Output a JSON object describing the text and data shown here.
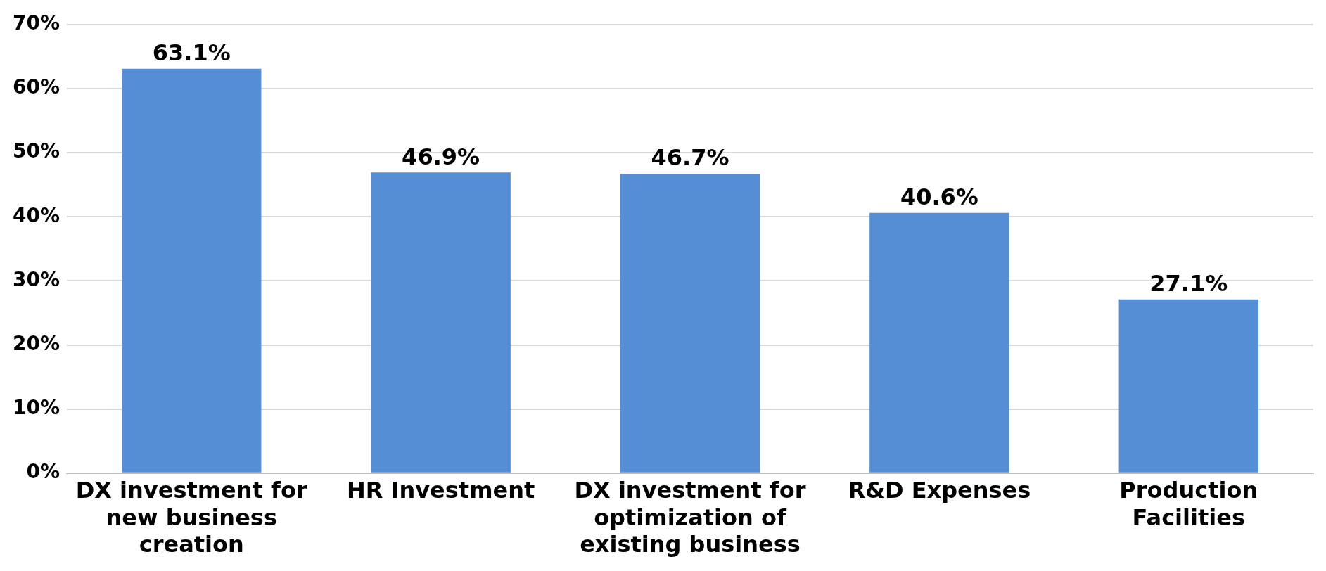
{
  "chart_data": {
    "type": "bar",
    "categories": [
      "DX investment for new business creation",
      "HR Investment",
      "DX investment for optimization of existing business",
      "R&D Expenses",
      "Production Facilities"
    ],
    "values": [
      63.1,
      46.9,
      46.7,
      40.6,
      27.1
    ],
    "color": "#558ed5",
    "value_labels": [
      "63.1%",
      "46.9%",
      "46.7%",
      "40.6%",
      "27.1%"
    ],
    "ylim": [
      0,
      70
    ],
    "yticks": [
      {
        "value": 0,
        "label": "0%"
      },
      {
        "value": 10,
        "label": "10%"
      },
      {
        "value": 20,
        "label": "20%"
      },
      {
        "value": 30,
        "label": "30%"
      },
      {
        "value": 40,
        "label": "40%"
      },
      {
        "value": 50,
        "label": "50%"
      },
      {
        "value": 60,
        "label": "60%"
      },
      {
        "value": 70,
        "label": "70%"
      }
    ],
    "grid": "y",
    "legend": false
  }
}
